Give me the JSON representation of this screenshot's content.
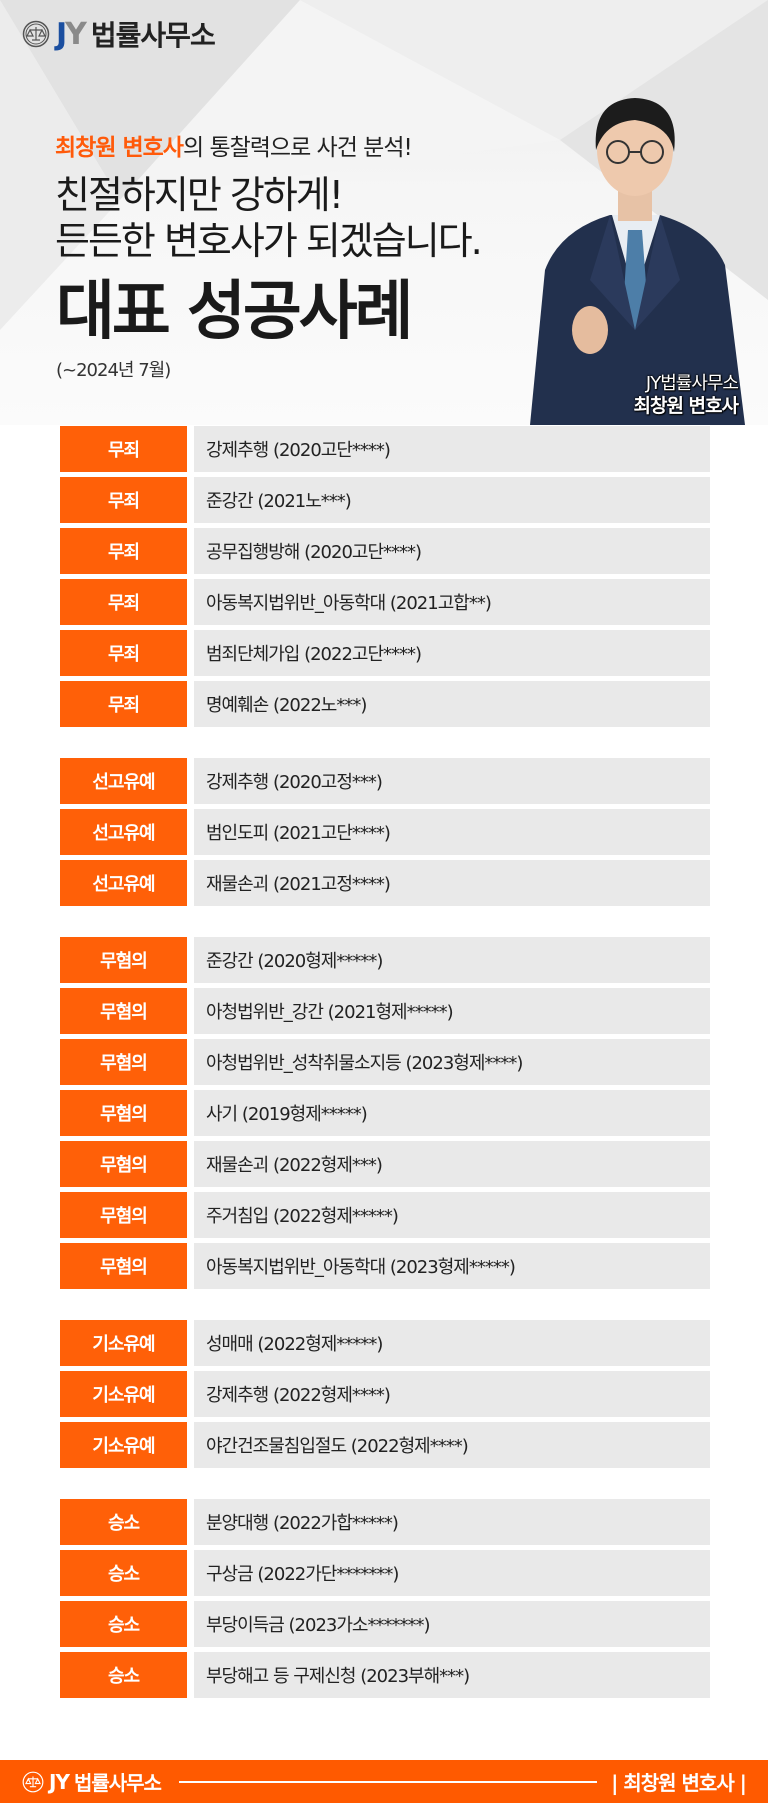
{
  "colors": {
    "accent": "#ff6008",
    "cell_bg": "#e9e9e9",
    "logo_j": "#1b4fa0",
    "logo_y": "#8a8a8a"
  },
  "logo": {
    "icon": "scales-of-justice-icon",
    "j": "J",
    "y": "Y",
    "name": "법률사무소"
  },
  "hero": {
    "sub_highlight": "최창원 변호사",
    "sub_rest": "의 통찰력으로 사건 분석!",
    "headline_1": "친절하지만 강하게!",
    "headline_2": "든든한 변호사가 되겠습니다.",
    "title": "대표 성공사례",
    "period": "(~2024년 7월)",
    "caption_firm": "JY법률사무소",
    "caption_name": "최창원 변호사"
  },
  "groups": [
    {
      "label": "무죄",
      "cases": [
        "강제추행 (2020고단****)",
        "준강간 (2021노***)",
        "공무집행방해 (2020고단****)",
        "아동복지법위반_아동학대 (2021고합**)",
        "범죄단체가입 (2022고단****)",
        "명예훼손 (2022노***)"
      ]
    },
    {
      "label": "선고유예",
      "cases": [
        "강제추행 (2020고정***)",
        "범인도피 (2021고단****)",
        "재물손괴 (2021고정****)"
      ]
    },
    {
      "label": "무혐의",
      "cases": [
        "준강간 (2020형제*****)",
        "아청법위반_강간 (2021형제*****)",
        "아청법위반_성착취물소지등 (2023형제****)",
        "사기 (2019형제*****)",
        "재물손괴 (2022형제***)",
        "주거침입 (2022형제*****)",
        "아동복지법위반_아동학대 (2023형제*****)"
      ]
    },
    {
      "label": "기소유예",
      "cases": [
        "성매매 (2022형제*****)",
        "강제추행 (2022형제****)",
        "야간건조물침입절도 (2022형제****)"
      ]
    },
    {
      "label": "승소",
      "cases": [
        "분양대행 (2022가합*****)",
        "구상금 (2022가단*******)",
        "부당이득금 (2023가소*******)",
        "부당해고 등 구제신청 (2023부해***)"
      ]
    }
  ],
  "footer": {
    "firm": "법률사무소",
    "jy": "JY",
    "right": "| 최창원 변호사 |"
  }
}
